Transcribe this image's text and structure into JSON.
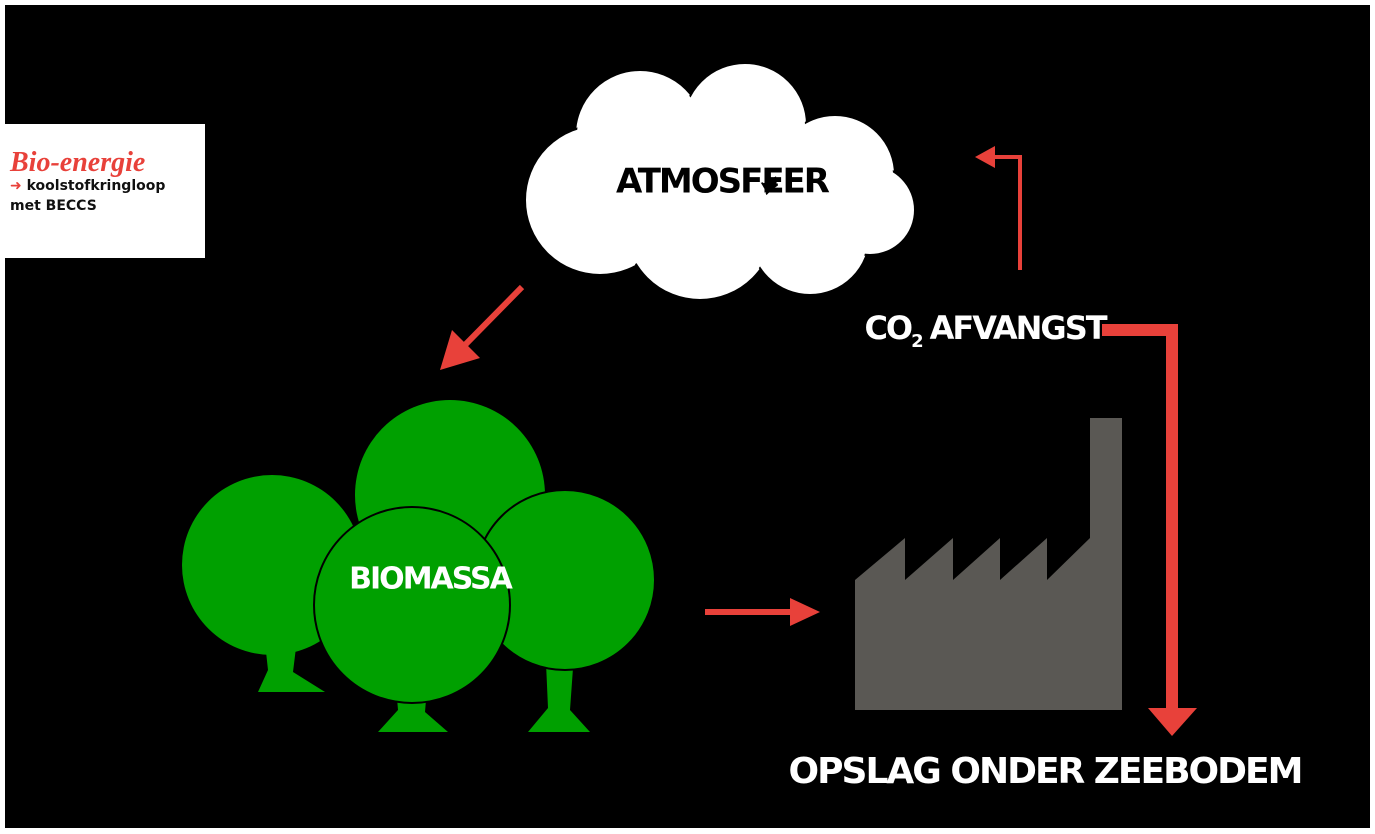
{
  "legend_box": {
    "title": "Bio-energie",
    "subtitle": "koolstofkringloop",
    "subtitle_line2": "met BECCS"
  },
  "nodes": [
    {
      "label": "ATMOSFEER"
    },
    {
      "label": "BIOMASSA"
    },
    {
      "label_main": "CO",
      "label_sub": "2",
      "label_rest": "AFVANGST"
    },
    {
      "label": "OPSLAG ONDER ZEEBODEM"
    }
  ]
}
